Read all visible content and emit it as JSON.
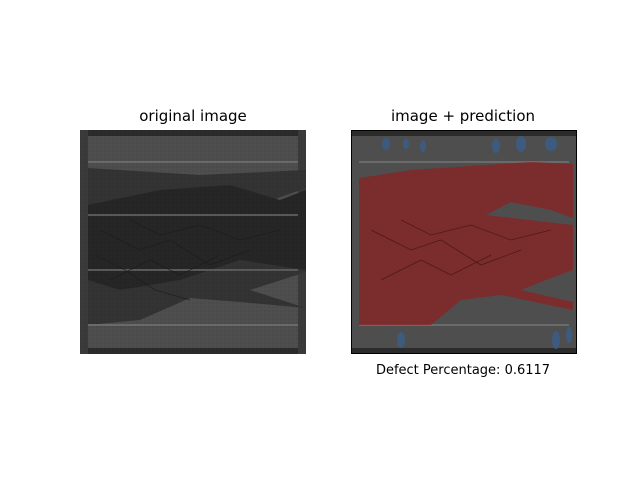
{
  "figure": {
    "left_title": "original image",
    "right_title": "image + prediction",
    "caption_label": "Defect Percentage:",
    "defect_percentage": "0.6117"
  },
  "colors": {
    "defect_overlay": "#8b2323",
    "minor_overlay": "#3a5f8a",
    "cell_gray": "#555555",
    "cell_dark": "#2e2e2e"
  }
}
